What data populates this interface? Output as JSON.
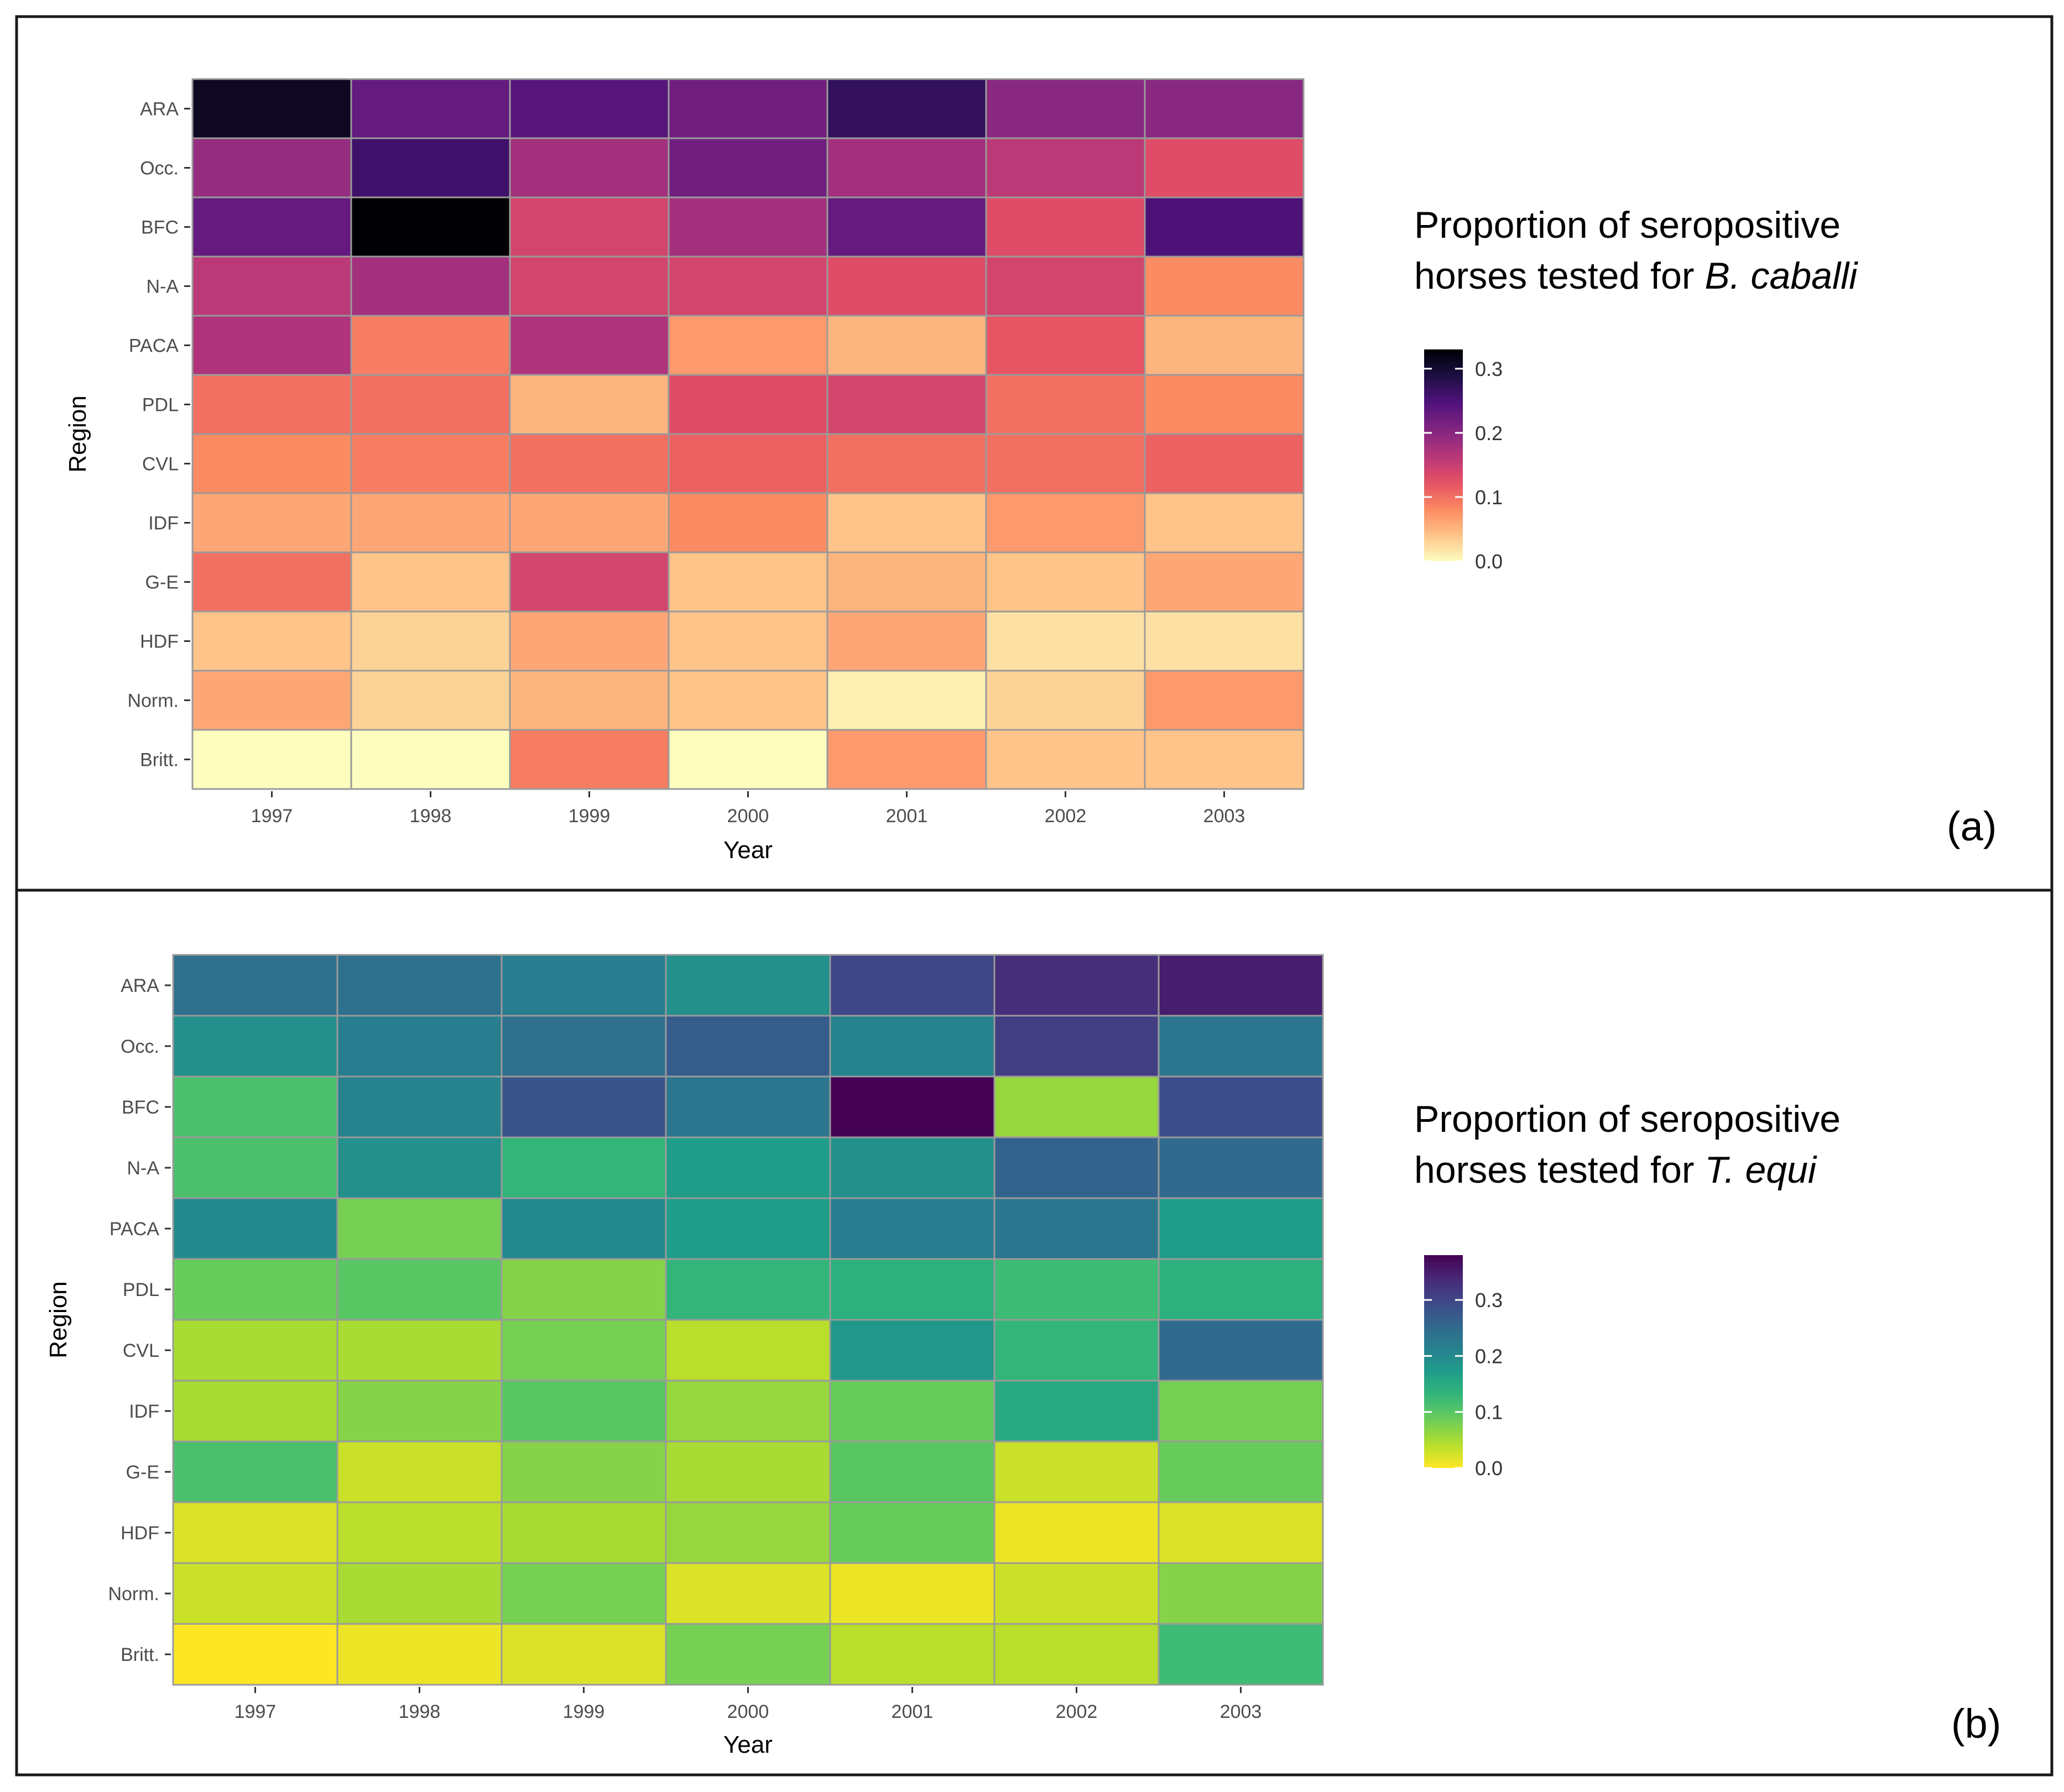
{
  "chart_data": [
    {
      "type": "heatmap",
      "panel_label": "(a)",
      "xlabel": "Year",
      "ylabel": "Region",
      "x_categories": [
        "1997",
        "1998",
        "1999",
        "2000",
        "2001",
        "2002",
        "2003"
      ],
      "y_categories": [
        "ARA",
        "Occ.",
        "BFC",
        "N-A",
        "PACA",
        "PDL",
        "CVL",
        "IDF",
        "G-E",
        "HDF",
        "Norm.",
        "Britt."
      ],
      "legend_title_line1": "Proportion of seropositive",
      "legend_title_prefix": "horses tested for ",
      "legend_title_species": "B. caballi",
      "colorscale": "magma",
      "color_range": [
        0,
        0.33
      ],
      "colorbar_ticks": [
        "0.0",
        "0.1",
        "0.2",
        "0.3"
      ],
      "colorbar_tick_values": [
        0,
        0.1,
        0.2,
        0.3
      ],
      "values": [
        [
          0.31,
          0.23,
          0.24,
          0.22,
          0.27,
          0.2,
          0.2
        ],
        [
          0.19,
          0.26,
          0.18,
          0.22,
          0.18,
          0.16,
          0.13
        ],
        [
          0.23,
          0.33,
          0.14,
          0.18,
          0.23,
          0.13,
          0.25
        ],
        [
          0.16,
          0.18,
          0.14,
          0.14,
          0.13,
          0.14,
          0.08
        ],
        [
          0.17,
          0.09,
          0.17,
          0.07,
          0.05,
          0.12,
          0.05
        ],
        [
          0.1,
          0.1,
          0.05,
          0.13,
          0.14,
          0.1,
          0.08
        ],
        [
          0.08,
          0.09,
          0.1,
          0.11,
          0.1,
          0.1,
          0.11
        ],
        [
          0.06,
          0.06,
          0.06,
          0.08,
          0.04,
          0.07,
          0.04
        ],
        [
          0.1,
          0.04,
          0.14,
          0.04,
          0.05,
          0.04,
          0.06
        ],
        [
          0.04,
          0.03,
          0.06,
          0.04,
          0.06,
          0.02,
          0.02
        ],
        [
          0.06,
          0.03,
          0.05,
          0.04,
          0.01,
          0.03,
          0.07
        ],
        [
          0.0,
          0.0,
          0.09,
          0.0,
          0.07,
          0.04,
          0.04
        ]
      ]
    },
    {
      "type": "heatmap",
      "panel_label": "(b)",
      "xlabel": "Year",
      "ylabel": "Region",
      "x_categories": [
        "1997",
        "1998",
        "1999",
        "2000",
        "2001",
        "2002",
        "2003"
      ],
      "y_categories": [
        "ARA",
        "Occ.",
        "BFC",
        "N-A",
        "PACA",
        "PDL",
        "CVL",
        "IDF",
        "G-E",
        "HDF",
        "Norm.",
        "Britt."
      ],
      "legend_title_line1": "Proportion of seropositive",
      "legend_title_prefix": "horses tested for ",
      "legend_title_species": "T. equi",
      "colorscale": "viridis",
      "color_range": [
        0,
        0.38
      ],
      "colorbar_ticks": [
        "0.0",
        "0.1",
        "0.2",
        "0.3"
      ],
      "colorbar_tick_values": [
        0,
        0.1,
        0.2,
        0.3
      ],
      "values": [
        [
          0.24,
          0.24,
          0.22,
          0.19,
          0.3,
          0.33,
          0.35
        ],
        [
          0.19,
          0.22,
          0.24,
          0.27,
          0.21,
          0.31,
          0.23
        ],
        [
          0.11,
          0.21,
          0.28,
          0.23,
          0.38,
          0.06,
          0.29
        ],
        [
          0.11,
          0.19,
          0.13,
          0.17,
          0.19,
          0.26,
          0.25
        ],
        [
          0.2,
          0.08,
          0.2,
          0.17,
          0.22,
          0.23,
          0.17
        ],
        [
          0.09,
          0.1,
          0.07,
          0.13,
          0.14,
          0.12,
          0.14
        ],
        [
          0.05,
          0.05,
          0.08,
          0.04,
          0.18,
          0.13,
          0.25
        ],
        [
          0.05,
          0.07,
          0.1,
          0.06,
          0.09,
          0.15,
          0.08
        ],
        [
          0.11,
          0.03,
          0.07,
          0.05,
          0.1,
          0.03,
          0.09
        ],
        [
          0.02,
          0.04,
          0.05,
          0.06,
          0.09,
          0.01,
          0.02
        ],
        [
          0.03,
          0.05,
          0.08,
          0.02,
          0.01,
          0.03,
          0.07
        ],
        [
          0.0,
          0.01,
          0.02,
          0.08,
          0.04,
          0.04,
          0.12
        ]
      ]
    }
  ],
  "colors": {
    "border": "#1a1a1a",
    "cell_stroke": "#9a9a9a",
    "magma": [
      "#000004",
      "#1c1044",
      "#4f127b",
      "#812581",
      "#b5367a",
      "#e55064",
      "#fb8761",
      "#fec287",
      "#fcfdbf"
    ],
    "viridis": [
      "#440154",
      "#482878",
      "#3e4989",
      "#31688e",
      "#26828e",
      "#1f9e89",
      "#35b779",
      "#6ece58",
      "#b5de2b",
      "#fde725"
    ]
  }
}
